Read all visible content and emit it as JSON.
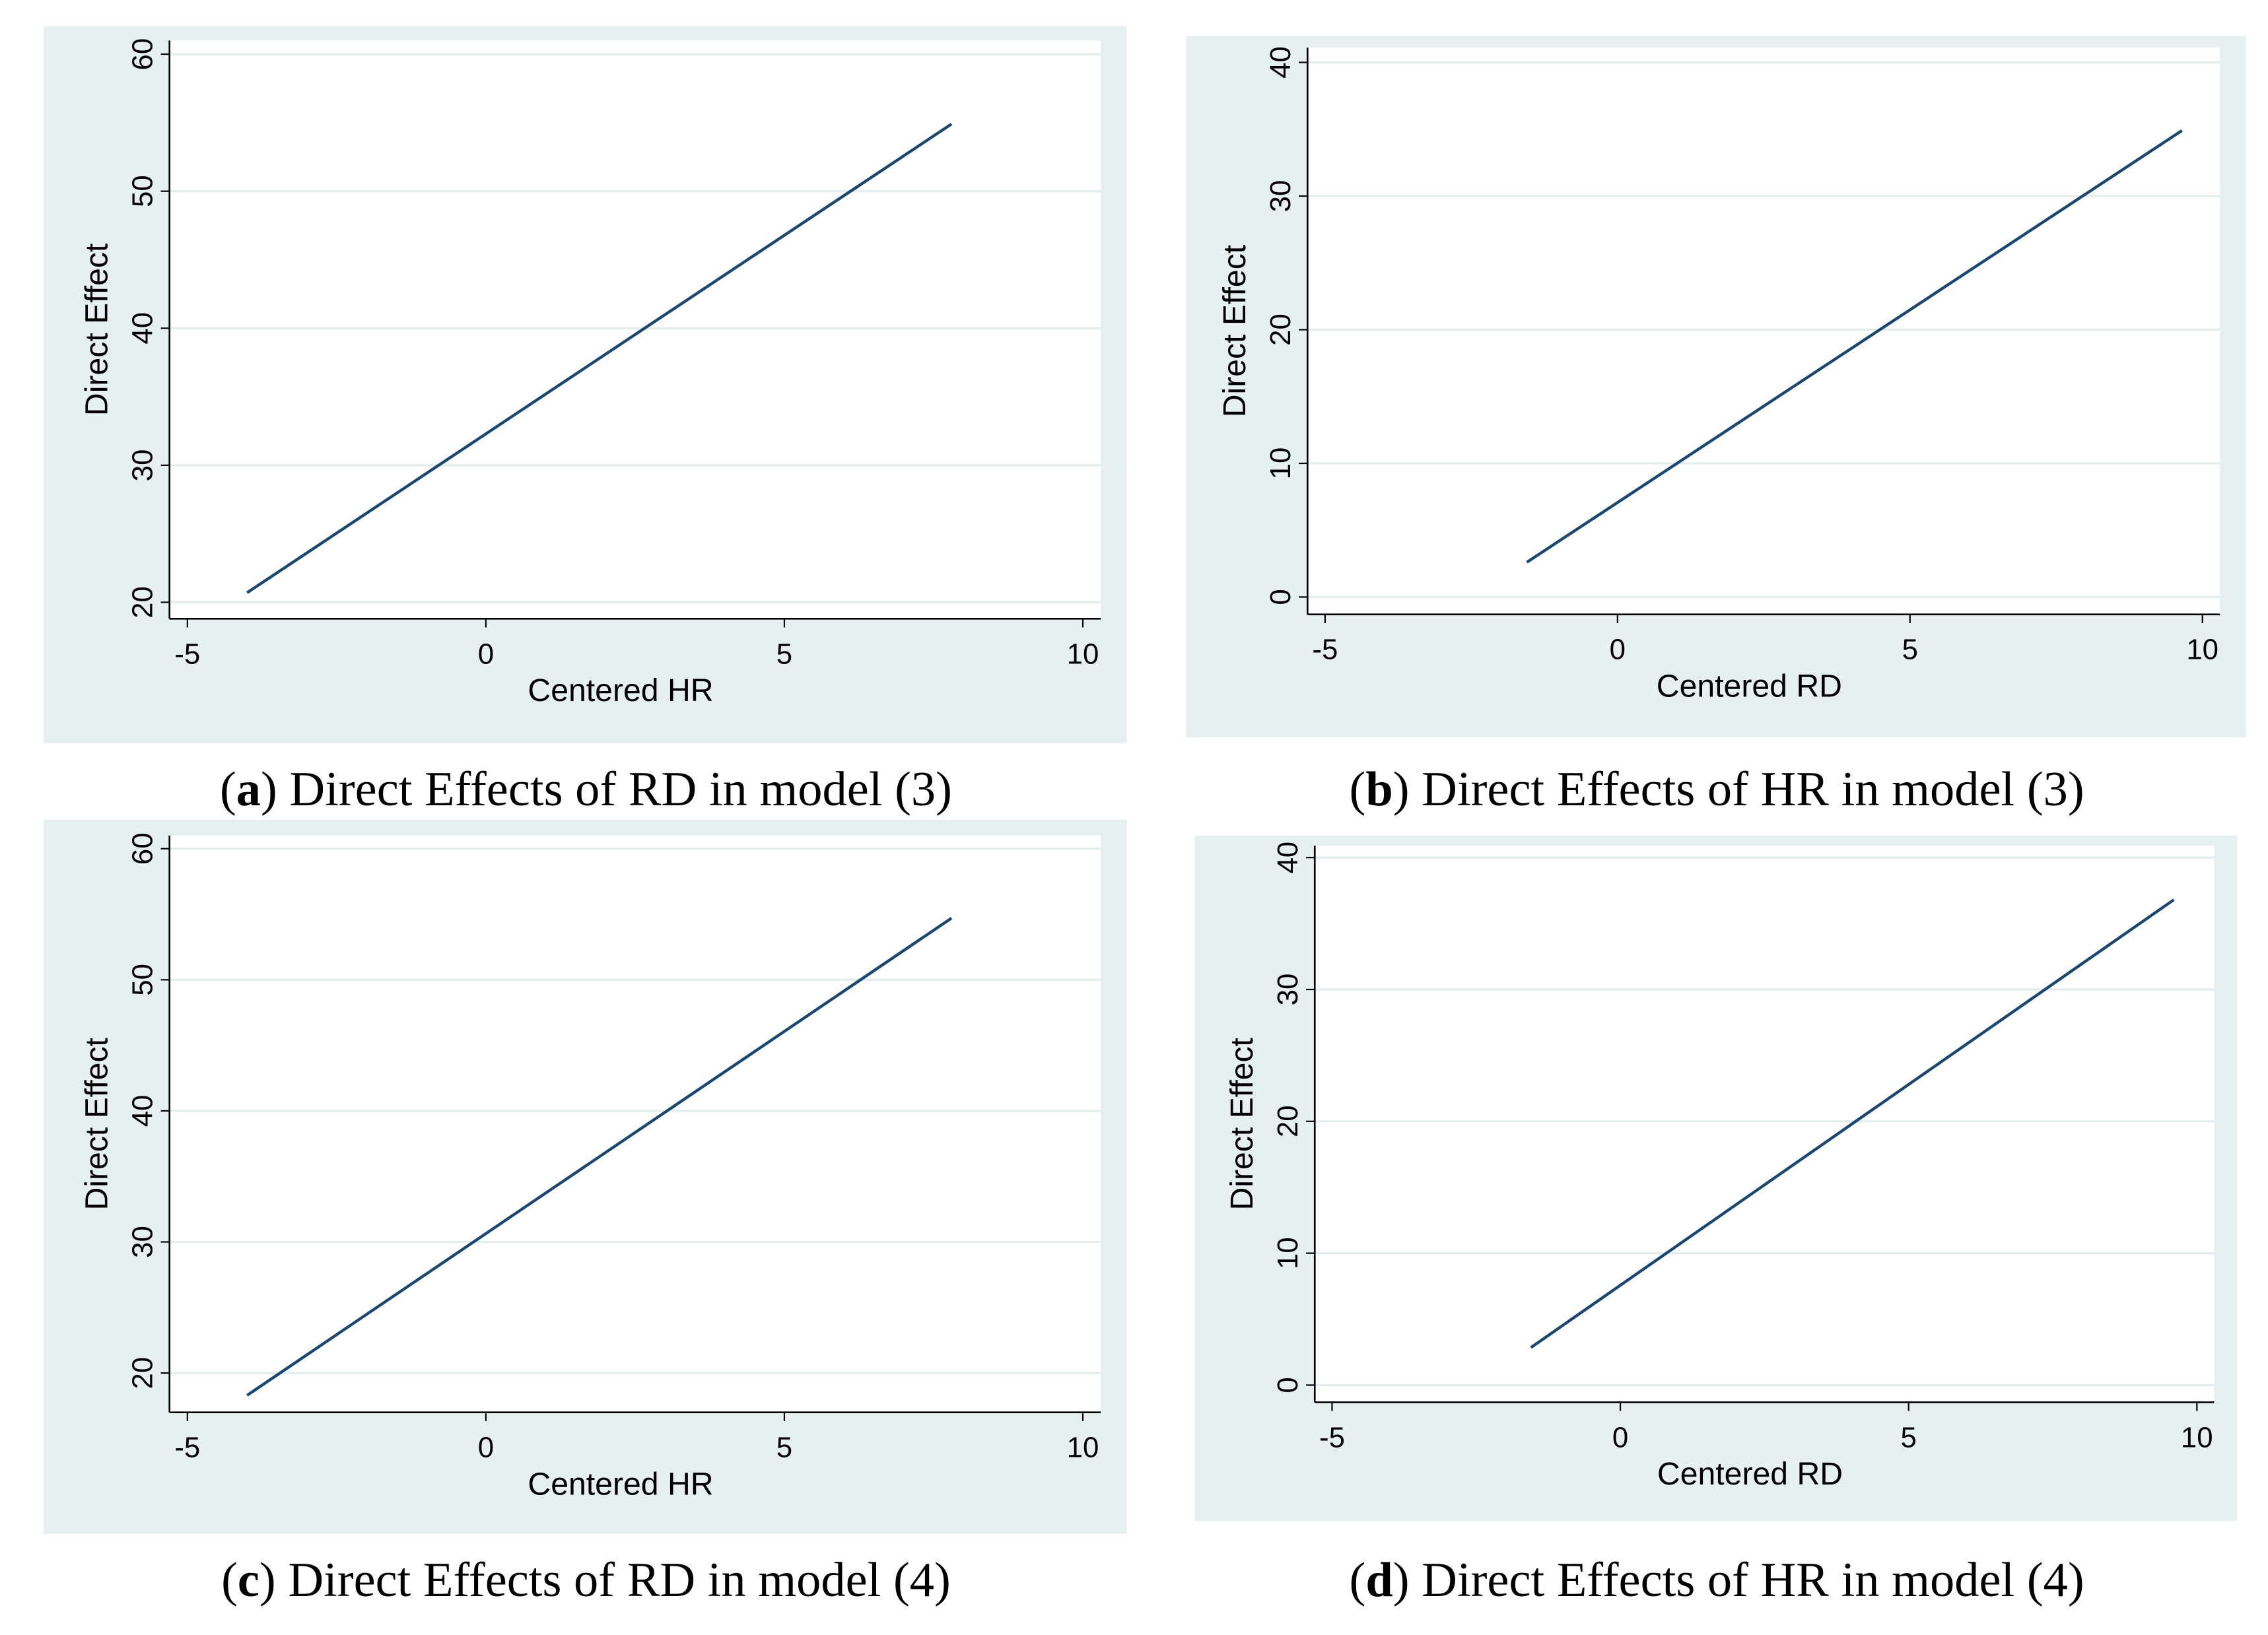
{
  "chart_data": [
    {
      "type": "line",
      "caption": [
        "(",
        "a",
        ") Direct Effects of RD in model (3)"
      ],
      "xlabel": "Centered HR",
      "ylabel": "Direct Effect",
      "x": [
        -4,
        7.8
      ],
      "values": [
        20.7,
        54.9
      ],
      "color": "#1a476f",
      "xlim": [
        -5.3,
        10.3
      ],
      "xticks": [
        -5,
        0,
        5,
        10
      ],
      "ylim": [
        18.8,
        61
      ],
      "yticks": [
        20,
        30,
        40,
        50,
        60
      ],
      "grid": true
    },
    {
      "type": "line",
      "caption": [
        "(",
        "b",
        ") Direct Effects of HR in model (3)"
      ],
      "xlabel": "Centered RD",
      "ylabel": "Direct Effect",
      "x": [
        -1.55,
        9.65
      ],
      "values": [
        2.6,
        34.9
      ],
      "color": "#1a476f",
      "xlim": [
        -5.3,
        10.3
      ],
      "xticks": [
        -5,
        0,
        5,
        10
      ],
      "ylim": [
        -1.3,
        41.1
      ],
      "yticks": [
        0,
        10,
        20,
        30,
        40
      ],
      "grid": true
    },
    {
      "type": "line",
      "caption": [
        "(",
        "c",
        ") Direct Effects of RD in model (4)"
      ],
      "xlabel": "Centered HR",
      "ylabel": "Direct Effect",
      "x": [
        -4,
        7.8
      ],
      "values": [
        18.3,
        54.7
      ],
      "color": "#1a476f",
      "xlim": [
        -5.3,
        10.3
      ],
      "xticks": [
        -5,
        0,
        5,
        10
      ],
      "ylim": [
        17,
        61
      ],
      "yticks": [
        20,
        30,
        40,
        50,
        60
      ],
      "grid": true
    },
    {
      "type": "line",
      "caption": [
        "(",
        "d",
        ") Direct Effects of HR in model (4)"
      ],
      "xlabel": "Centered RD",
      "ylabel": "Direct Effect",
      "x": [
        -1.55,
        9.6
      ],
      "values": [
        2.85,
        36.8
      ],
      "color": "#1a476f",
      "xlim": [
        -5.3,
        10.3
      ],
      "xticks": [
        -5,
        0,
        5,
        10
      ],
      "ylim": [
        -1.3,
        40.9
      ],
      "yticks": [
        0,
        10,
        20,
        30,
        40
      ],
      "grid": true
    }
  ]
}
